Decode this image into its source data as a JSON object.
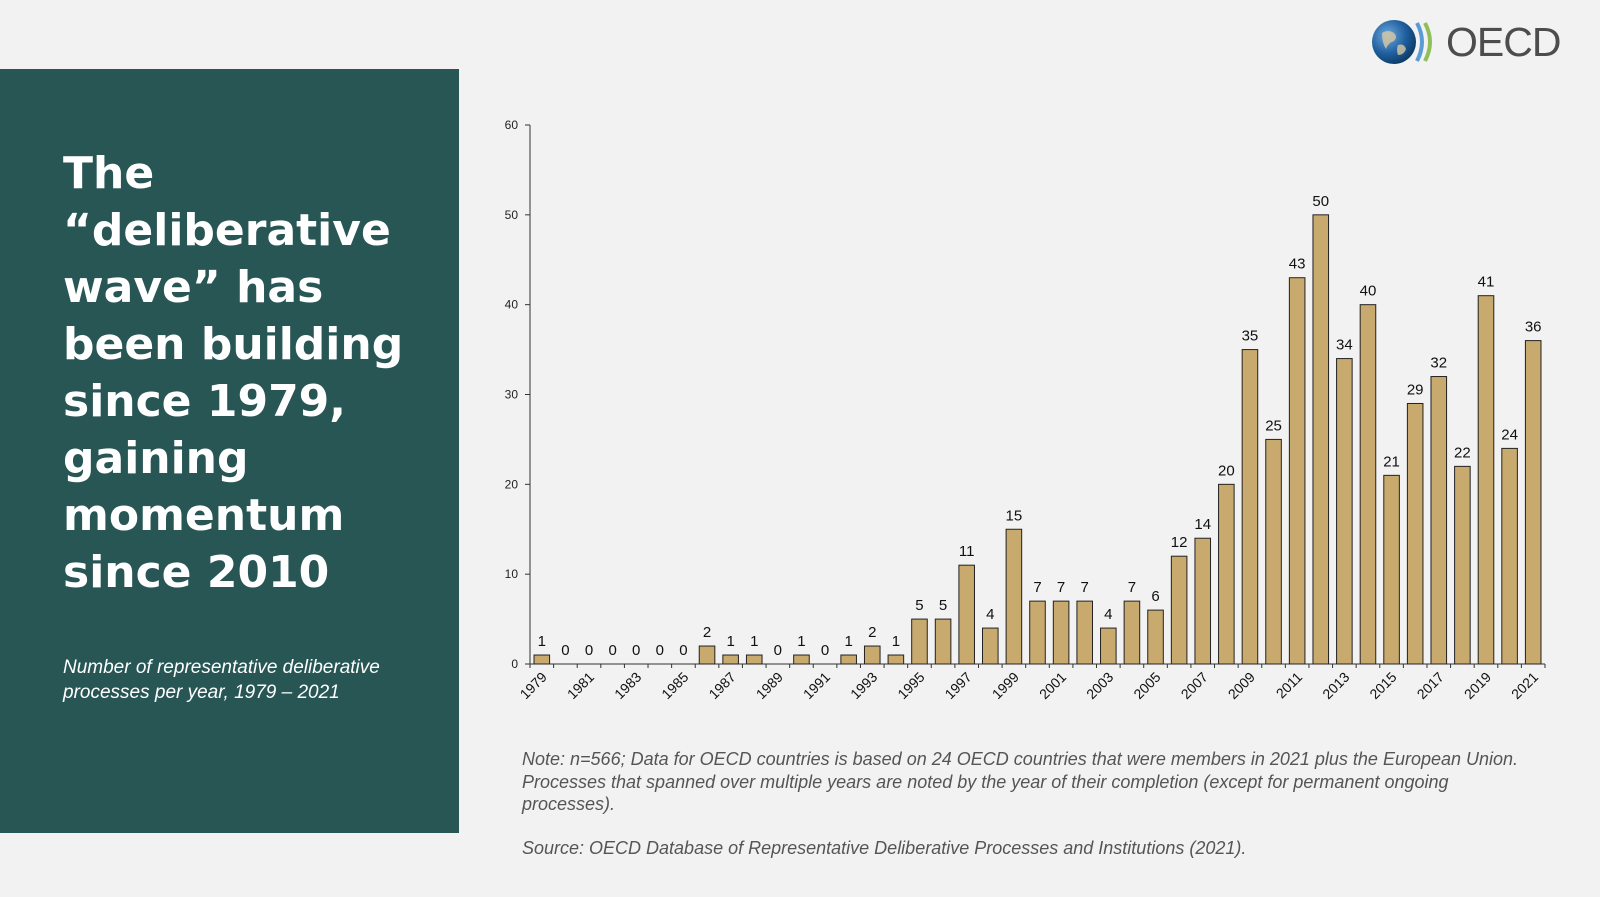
{
  "brand": {
    "name": "OECD",
    "colors": {
      "panel": "#275655",
      "bar": "#c8a96e",
      "bar_outline": "#222222",
      "background": "#f2f2f2"
    }
  },
  "panel": {
    "headline": "The “deliberative wave” has been building since 1979, gaining momentum since 2010",
    "subtitle": "Number of representative deliberative processes per year, 1979 – 2021"
  },
  "note": "Note: n=566; Data for OECD countries is based on 24 OECD countries that were members in 2021 plus the European Union. Processes that spanned over multiple years are noted by the year of their completion (except for permanent ongoing processes).",
  "source": "Source: OECD Database of Representative Deliberative Processes and Institutions (2021).",
  "chart_data": {
    "type": "bar",
    "categories": [
      "1979",
      "1980",
      "1981",
      "1982",
      "1983",
      "1984",
      "1985",
      "1986",
      "1987",
      "1988",
      "1989",
      "1990",
      "1991",
      "1992",
      "1993",
      "1994",
      "1995",
      "1996",
      "1997",
      "1998",
      "1999",
      "2000",
      "2001",
      "2002",
      "2003",
      "2004",
      "2005",
      "2006",
      "2007",
      "2008",
      "2009",
      "2010",
      "2011",
      "2012",
      "2013",
      "2014",
      "2015",
      "2016",
      "2017",
      "2018",
      "2019",
      "2020",
      "2021"
    ],
    "values": [
      1,
      0,
      0,
      0,
      0,
      0,
      0,
      2,
      1,
      1,
      0,
      1,
      0,
      1,
      2,
      1,
      5,
      5,
      11,
      4,
      15,
      7,
      7,
      7,
      4,
      7,
      6,
      12,
      14,
      20,
      35,
      25,
      43,
      50,
      34,
      40,
      21,
      29,
      32,
      22,
      41,
      24,
      36
    ],
    "tick_labels": [
      "1979",
      "1981",
      "1983",
      "1985",
      "1987",
      "1989",
      "1991",
      "1993",
      "1995",
      "1997",
      "1999",
      "2001",
      "2003",
      "2005",
      "2007",
      "2009",
      "2011",
      "2013",
      "2015",
      "2017",
      "2019",
      "2021"
    ],
    "y_ticks": [
      0,
      10,
      20,
      30,
      40,
      50,
      60
    ],
    "ylim": [
      0,
      60
    ],
    "data_labels": true,
    "grid": false,
    "legend": "none",
    "title": "",
    "xlabel": "",
    "ylabel": ""
  }
}
